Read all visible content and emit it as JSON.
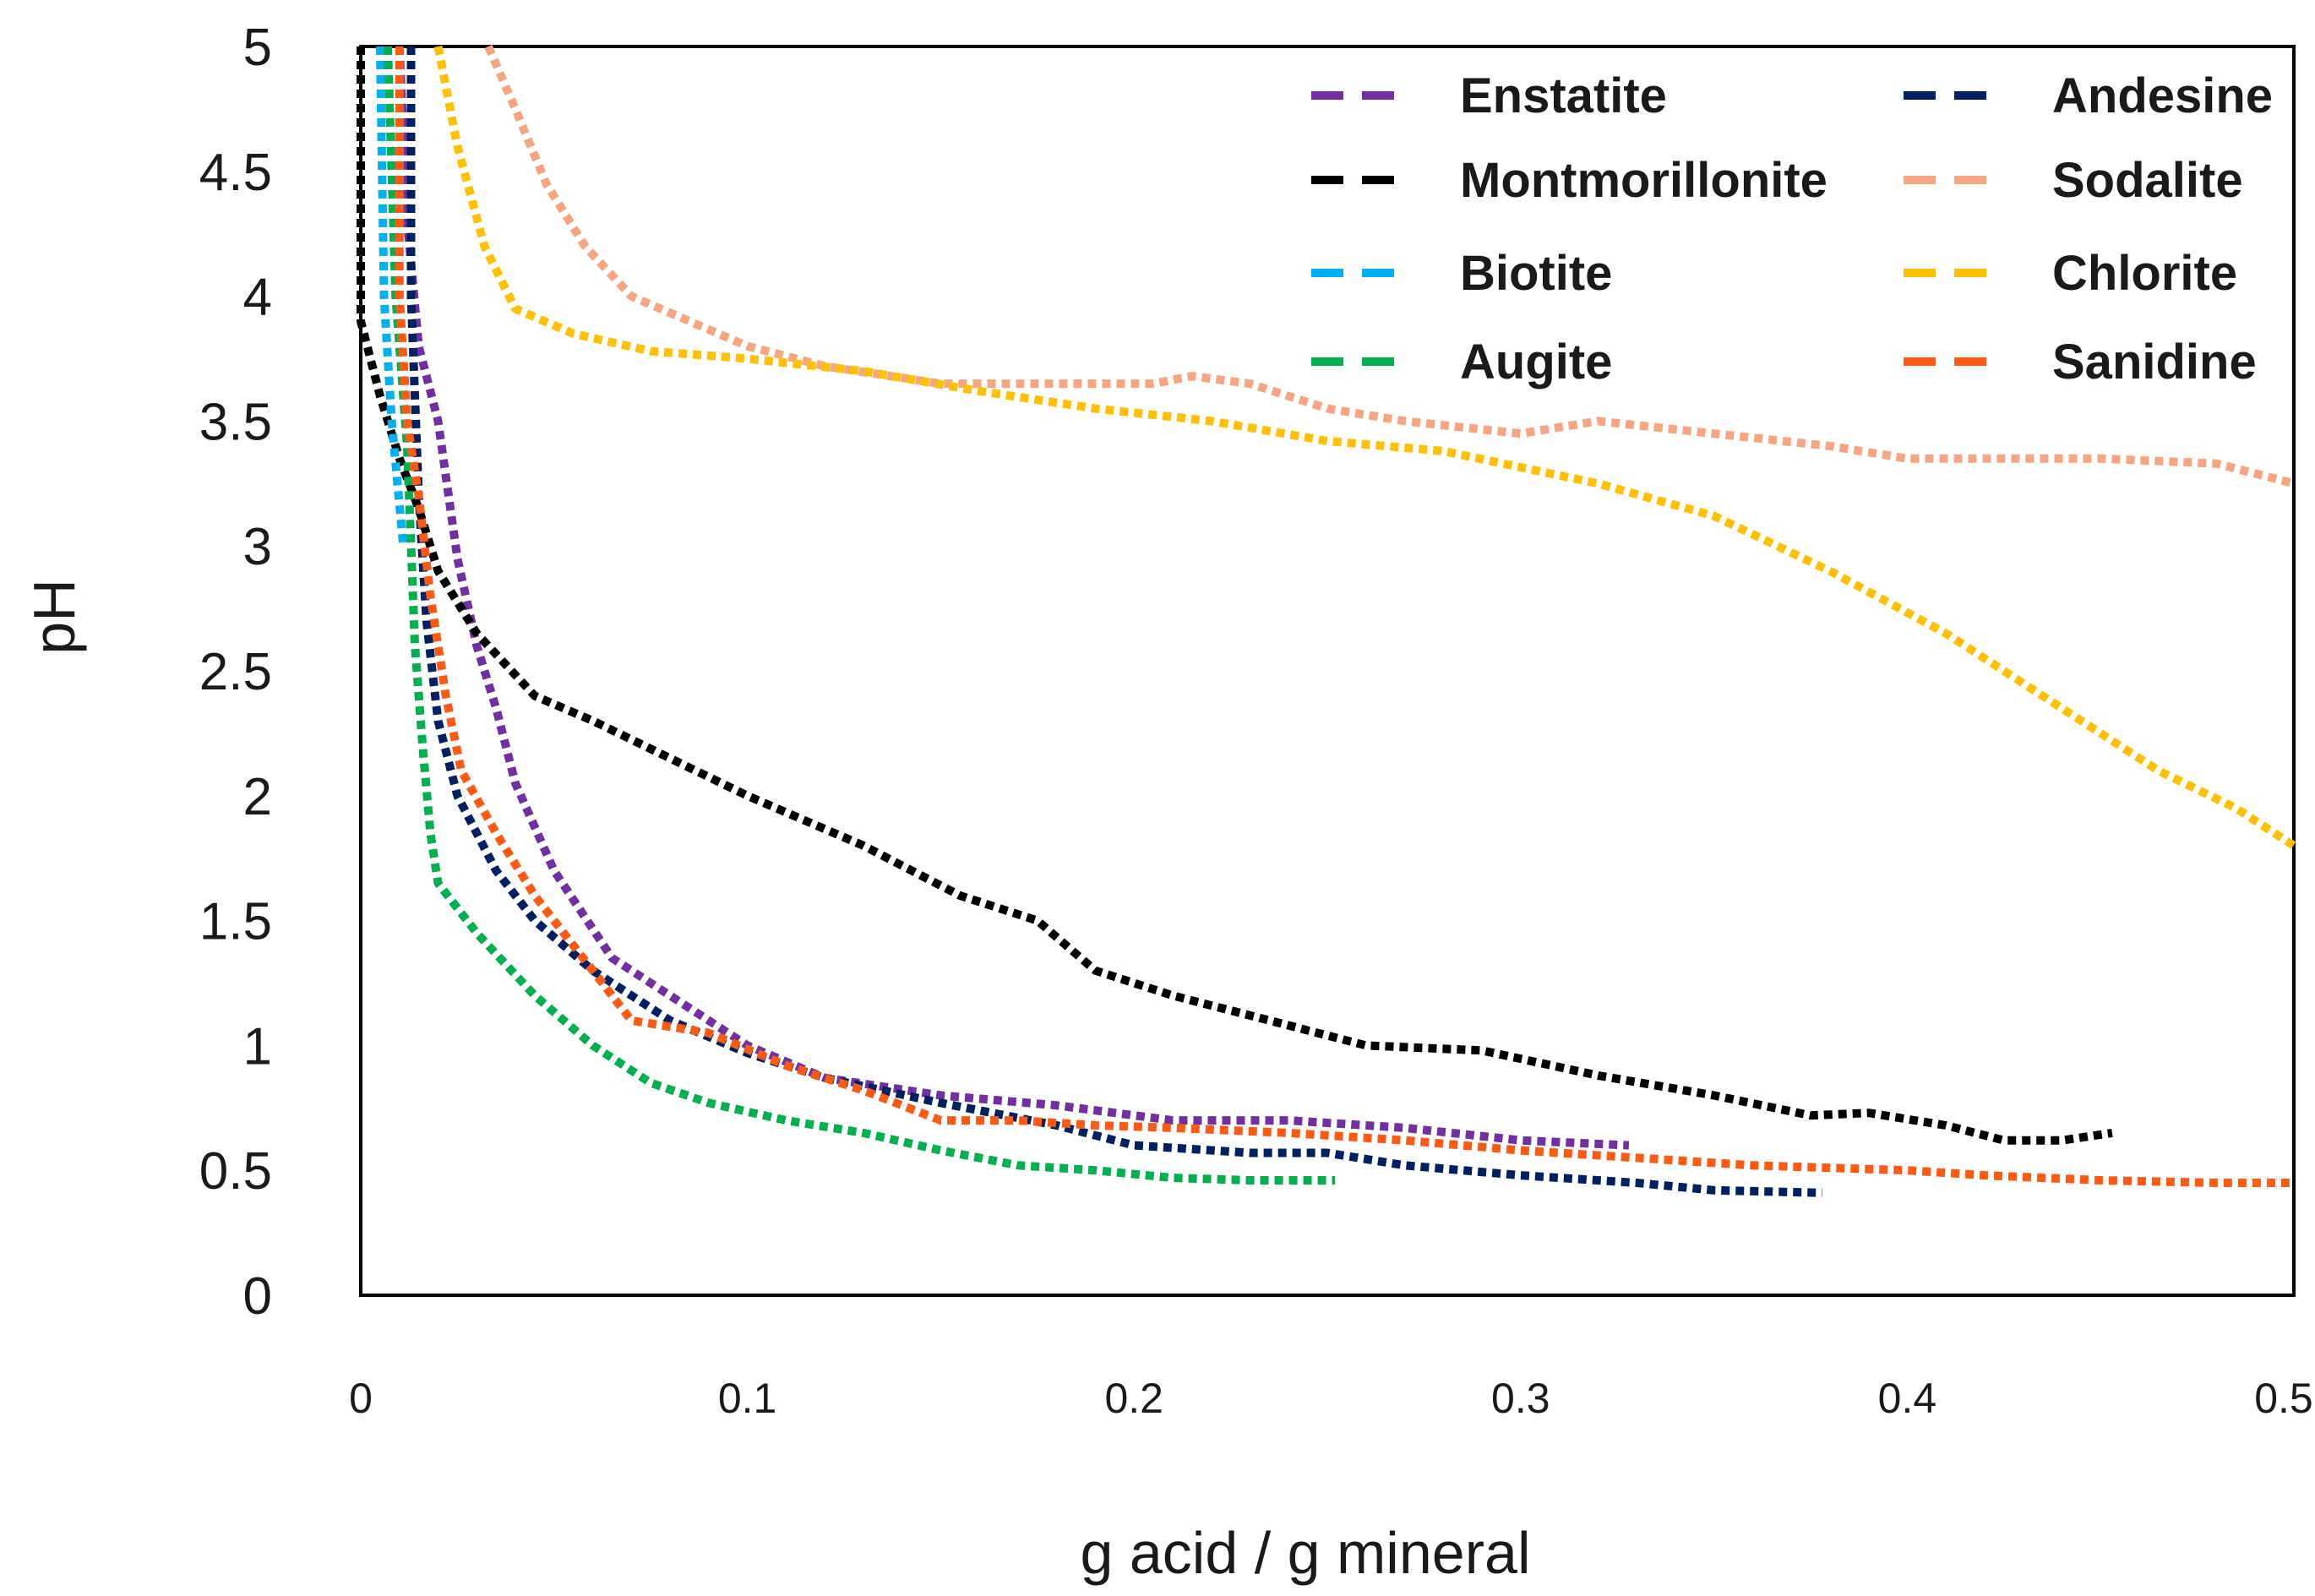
{
  "chart_data": {
    "type": "line",
    "title": "",
    "xlabel": "g acid / g mineral",
    "ylabel": "pH",
    "xlim": [
      0,
      0.5
    ],
    "ylim": [
      0,
      5
    ],
    "x_ticks": [
      "0",
      "0.1",
      "0.2",
      "0.3",
      "0.4",
      "0.5"
    ],
    "y_ticks": [
      "0",
      "0.5",
      "1",
      "1.5",
      "2",
      "2.5",
      "3",
      "3.5",
      "4",
      "4.5",
      "5"
    ],
    "grid": false,
    "legend_position": "top-right",
    "series": [
      {
        "name": "Enstatite",
        "color": "#7030a0",
        "points": [
          [
            0.01,
            5.0
          ],
          [
            0.012,
            4.3
          ],
          [
            0.015,
            3.8
          ],
          [
            0.02,
            3.5
          ],
          [
            0.025,
            2.95
          ],
          [
            0.03,
            2.6
          ],
          [
            0.035,
            2.35
          ],
          [
            0.04,
            2.05
          ],
          [
            0.05,
            1.7
          ],
          [
            0.065,
            1.35
          ],
          [
            0.08,
            1.2
          ],
          [
            0.1,
            1.0
          ],
          [
            0.12,
            0.87
          ],
          [
            0.15,
            0.8
          ],
          [
            0.18,
            0.76
          ],
          [
            0.21,
            0.7
          ],
          [
            0.24,
            0.7
          ],
          [
            0.27,
            0.67
          ],
          [
            0.3,
            0.62
          ],
          [
            0.328,
            0.6
          ]
        ]
      },
      {
        "name": "Montmorillonite",
        "color": "#000000",
        "points": [
          [
            0.0,
            5.0
          ],
          [
            0.0,
            3.9
          ],
          [
            0.005,
            3.6
          ],
          [
            0.01,
            3.35
          ],
          [
            0.015,
            3.15
          ],
          [
            0.02,
            2.9
          ],
          [
            0.03,
            2.65
          ],
          [
            0.045,
            2.4
          ],
          [
            0.06,
            2.3
          ],
          [
            0.08,
            2.15
          ],
          [
            0.1,
            2.0
          ],
          [
            0.13,
            1.8
          ],
          [
            0.155,
            1.6
          ],
          [
            0.175,
            1.5
          ],
          [
            0.19,
            1.3
          ],
          [
            0.21,
            1.2
          ],
          [
            0.235,
            1.1
          ],
          [
            0.26,
            1.0
          ],
          [
            0.29,
            0.98
          ],
          [
            0.32,
            0.88
          ],
          [
            0.35,
            0.8
          ],
          [
            0.375,
            0.72
          ],
          [
            0.39,
            0.73
          ],
          [
            0.41,
            0.68
          ],
          [
            0.425,
            0.62
          ],
          [
            0.44,
            0.62
          ],
          [
            0.453,
            0.65
          ]
        ]
      },
      {
        "name": "Biotite",
        "color": "#00b0f0",
        "points": [
          [
            0.005,
            5.0
          ],
          [
            0.006,
            4.0
          ],
          [
            0.008,
            3.5
          ],
          [
            0.011,
            3.0
          ]
        ]
      },
      {
        "name": "Augite",
        "color": "#00b050",
        "points": [
          [
            0.007,
            5.0
          ],
          [
            0.009,
            4.0
          ],
          [
            0.012,
            3.4
          ],
          [
            0.013,
            3.0
          ],
          [
            0.014,
            2.6
          ],
          [
            0.016,
            2.2
          ],
          [
            0.018,
            1.85
          ],
          [
            0.02,
            1.65
          ],
          [
            0.03,
            1.45
          ],
          [
            0.045,
            1.2
          ],
          [
            0.06,
            1.0
          ],
          [
            0.075,
            0.85
          ],
          [
            0.09,
            0.77
          ],
          [
            0.11,
            0.7
          ],
          [
            0.13,
            0.65
          ],
          [
            0.15,
            0.58
          ],
          [
            0.17,
            0.52
          ],
          [
            0.19,
            0.5
          ],
          [
            0.21,
            0.47
          ],
          [
            0.23,
            0.46
          ],
          [
            0.252,
            0.46
          ]
        ]
      },
      {
        "name": "Andesine",
        "color": "#002060",
        "points": [
          [
            0.013,
            5.0
          ],
          [
            0.013,
            4.0
          ],
          [
            0.015,
            3.2
          ],
          [
            0.017,
            2.7
          ],
          [
            0.02,
            2.3
          ],
          [
            0.025,
            2.0
          ],
          [
            0.035,
            1.7
          ],
          [
            0.045,
            1.5
          ],
          [
            0.06,
            1.3
          ],
          [
            0.08,
            1.1
          ],
          [
            0.1,
            0.97
          ],
          [
            0.12,
            0.87
          ],
          [
            0.15,
            0.77
          ],
          [
            0.18,
            0.68
          ],
          [
            0.2,
            0.6
          ],
          [
            0.23,
            0.57
          ],
          [
            0.25,
            0.57
          ],
          [
            0.27,
            0.52
          ],
          [
            0.3,
            0.48
          ],
          [
            0.33,
            0.45
          ],
          [
            0.35,
            0.42
          ],
          [
            0.378,
            0.41
          ]
        ]
      },
      {
        "name": "Sodalite",
        "color": "#f4a582",
        "points": [
          [
            0.033,
            5.0
          ],
          [
            0.04,
            4.75
          ],
          [
            0.048,
            4.45
          ],
          [
            0.058,
            4.2
          ],
          [
            0.07,
            4.0
          ],
          [
            0.085,
            3.9
          ],
          [
            0.1,
            3.8
          ],
          [
            0.12,
            3.72
          ],
          [
            0.15,
            3.65
          ],
          [
            0.18,
            3.65
          ],
          [
            0.205,
            3.65
          ],
          [
            0.215,
            3.68
          ],
          [
            0.23,
            3.65
          ],
          [
            0.25,
            3.55
          ],
          [
            0.27,
            3.5
          ],
          [
            0.3,
            3.45
          ],
          [
            0.32,
            3.5
          ],
          [
            0.35,
            3.45
          ],
          [
            0.38,
            3.4
          ],
          [
            0.4,
            3.35
          ],
          [
            0.45,
            3.35
          ],
          [
            0.48,
            3.33
          ],
          [
            0.5,
            3.25
          ]
        ]
      },
      {
        "name": "Chlorite",
        "color": "#ffc000",
        "points": [
          [
            0.02,
            5.0
          ],
          [
            0.025,
            4.6
          ],
          [
            0.032,
            4.2
          ],
          [
            0.04,
            3.95
          ],
          [
            0.055,
            3.85
          ],
          [
            0.075,
            3.78
          ],
          [
            0.1,
            3.75
          ],
          [
            0.13,
            3.7
          ],
          [
            0.16,
            3.62
          ],
          [
            0.19,
            3.55
          ],
          [
            0.22,
            3.5
          ],
          [
            0.25,
            3.42
          ],
          [
            0.28,
            3.38
          ],
          [
            0.32,
            3.25
          ],
          [
            0.35,
            3.12
          ],
          [
            0.38,
            2.9
          ],
          [
            0.41,
            2.65
          ],
          [
            0.44,
            2.35
          ],
          [
            0.465,
            2.1
          ],
          [
            0.485,
            1.95
          ],
          [
            0.5,
            1.8
          ]
        ]
      },
      {
        "name": "Sanidine",
        "color": "#ff5a14",
        "points": [
          [
            0.01,
            5.0
          ],
          [
            0.01,
            4.0
          ],
          [
            0.012,
            3.5
          ],
          [
            0.015,
            3.2
          ],
          [
            0.018,
            2.8
          ],
          [
            0.022,
            2.4
          ],
          [
            0.026,
            2.1
          ],
          [
            0.035,
            1.85
          ],
          [
            0.045,
            1.6
          ],
          [
            0.055,
            1.4
          ],
          [
            0.065,
            1.2
          ],
          [
            0.07,
            1.1
          ],
          [
            0.09,
            1.05
          ],
          [
            0.11,
            0.92
          ],
          [
            0.13,
            0.82
          ],
          [
            0.15,
            0.7
          ],
          [
            0.17,
            0.7
          ],
          [
            0.19,
            0.68
          ],
          [
            0.21,
            0.67
          ],
          [
            0.24,
            0.65
          ],
          [
            0.27,
            0.62
          ],
          [
            0.3,
            0.58
          ],
          [
            0.33,
            0.55
          ],
          [
            0.36,
            0.52
          ],
          [
            0.4,
            0.5
          ],
          [
            0.42,
            0.48
          ],
          [
            0.45,
            0.46
          ],
          [
            0.48,
            0.45
          ],
          [
            0.5,
            0.45
          ]
        ]
      }
    ]
  }
}
